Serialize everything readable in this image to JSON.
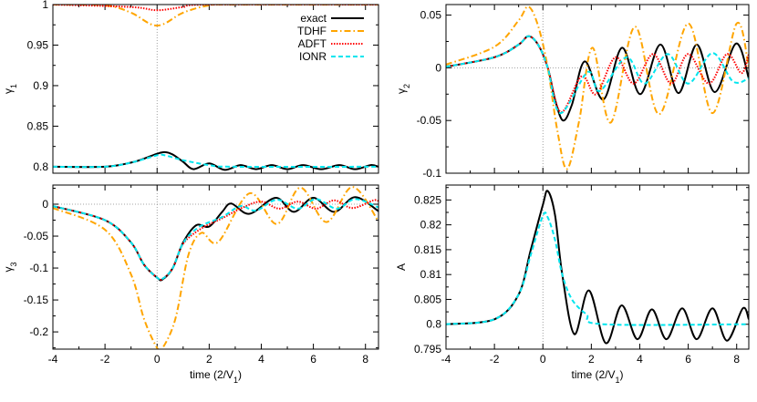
{
  "chart_data": [
    {
      "type": "line",
      "ylabel": "γ₁",
      "xlabel": "",
      "xlim": [
        -4,
        8.5
      ],
      "ylim": [
        0.792,
        1.0
      ],
      "xticks": [
        -4,
        -2,
        0,
        2,
        4,
        6,
        8
      ],
      "show_xtick_labels": false,
      "yticks": [
        0.8,
        0.85,
        0.9,
        0.95,
        1
      ],
      "ytick_labels": [
        "0.8",
        "0.85",
        "0.9",
        "0.95",
        "1"
      ],
      "zero_lines": {
        "vertical": true,
        "horizontal": false
      },
      "legend": {
        "position": "top-right",
        "entries": [
          "exact",
          "TDHF",
          "ADFT",
          "IONR"
        ]
      },
      "series": [
        {
          "name": "exact",
          "color": "#000000",
          "points": [
            [
              -4,
              0.8
            ],
            [
              -2,
              0.8
            ],
            [
              -1,
              0.805
            ],
            [
              -0.5,
              0.81
            ],
            [
              0,
              0.816
            ],
            [
              0.3,
              0.818
            ],
            [
              0.6,
              0.815
            ],
            [
              1,
              0.806
            ],
            [
              1.4,
              0.797
            ],
            [
              2,
              0.804
            ],
            [
              2.6,
              0.796
            ],
            [
              3.2,
              0.802
            ],
            [
              3.8,
              0.797
            ],
            [
              4.4,
              0.802
            ],
            [
              5,
              0.797
            ],
            [
              5.6,
              0.802
            ],
            [
              6.3,
              0.797
            ],
            [
              7,
              0.802
            ],
            [
              7.6,
              0.797
            ],
            [
              8.2,
              0.802
            ],
            [
              8.5,
              0.8
            ]
          ]
        },
        {
          "name": "TDHF",
          "color": "#ffa500",
          "points": [
            [
              -4,
              1
            ],
            [
              -2,
              0.999
            ],
            [
              -1,
              0.99
            ],
            [
              0,
              0.974
            ],
            [
              1,
              0.99
            ],
            [
              2,
              0.999
            ],
            [
              3,
              1
            ],
            [
              8.5,
              1
            ]
          ]
        },
        {
          "name": "ADFT",
          "color": "#ff0000",
          "points": [
            [
              -4,
              1
            ],
            [
              -1,
              0.997
            ],
            [
              0,
              0.993
            ],
            [
              1,
              0.997
            ],
            [
              2,
              1
            ],
            [
              8.5,
              1
            ]
          ]
        },
        {
          "name": "IONR",
          "color": "#00e5ee",
          "points": [
            [
              -4,
              0.8
            ],
            [
              -2,
              0.8
            ],
            [
              -1,
              0.805
            ],
            [
              0,
              0.814
            ],
            [
              0.3,
              0.814
            ],
            [
              1,
              0.808
            ],
            [
              2,
              0.802
            ],
            [
              3,
              0.8
            ],
            [
              8.5,
              0.8
            ]
          ]
        }
      ]
    },
    {
      "type": "line",
      "ylabel": "γ₂",
      "xlabel": "",
      "xlim": [
        -4,
        8.5
      ],
      "ylim": [
        -0.1,
        0.06
      ],
      "xticks": [
        -4,
        -2,
        0,
        2,
        4,
        6,
        8
      ],
      "show_xtick_labels": false,
      "yticks": [
        -0.1,
        -0.05,
        0,
        0.05
      ],
      "ytick_labels": [
        "-0.1",
        "-0.05",
        "0",
        "0.05"
      ],
      "zero_lines": {
        "vertical": true,
        "horizontal": true
      },
      "series": [
        {
          "name": "exact",
          "color": "#000000",
          "points": [
            [
              -4,
              0.001
            ],
            [
              -2,
              0.01
            ],
            [
              -1,
              0.022
            ],
            [
              -0.6,
              0.03
            ],
            [
              -0.2,
              0.022
            ],
            [
              0.2,
              0
            ],
            [
              0.5,
              -0.03
            ],
            [
              0.83,
              -0.05
            ],
            [
              1.2,
              -0.035
            ],
            [
              1.73,
              0.006
            ],
            [
              2.5,
              -0.03
            ],
            [
              3.27,
              0.019
            ],
            [
              4.02,
              -0.025
            ],
            [
              4.85,
              0.022
            ],
            [
              5.6,
              -0.024
            ],
            [
              6.35,
              0.022
            ],
            [
              7.1,
              -0.023
            ],
            [
              7.97,
              0.023
            ],
            [
              8.5,
              -0.01
            ]
          ]
        },
        {
          "name": "TDHF",
          "color": "#ffa500",
          "points": [
            [
              -4,
              0.003
            ],
            [
              -2,
              0.02
            ],
            [
              -1,
              0.045
            ],
            [
              -0.6,
              0.058
            ],
            [
              -0.2,
              0.04
            ],
            [
              0.2,
              0
            ],
            [
              0.6,
              -0.06
            ],
            [
              1.0,
              -0.096
            ],
            [
              1.5,
              -0.05
            ],
            [
              2.05,
              0.019
            ],
            [
              2.8,
              -0.052
            ],
            [
              3.8,
              0.039
            ],
            [
              4.8,
              -0.044
            ],
            [
              6.0,
              0.042
            ],
            [
              7.0,
              -0.043
            ],
            [
              8.0,
              0.042
            ],
            [
              8.5,
              0.0
            ]
          ]
        },
        {
          "name": "ADFT",
          "color": "#ff0000",
          "points": [
            [
              -4,
              0.001
            ],
            [
              -2,
              0.01
            ],
            [
              -1,
              0.022
            ],
            [
              -0.6,
              0.03
            ],
            [
              -0.2,
              0.022
            ],
            [
              0.2,
              0
            ],
            [
              0.75,
              -0.042
            ],
            [
              1.6,
              -0.008
            ],
            [
              2.2,
              -0.025
            ],
            [
              3.0,
              0.01
            ],
            [
              3.75,
              -0.015
            ],
            [
              4.55,
              0.013
            ],
            [
              5.3,
              -0.015
            ],
            [
              6.0,
              0.013
            ],
            [
              6.85,
              -0.015
            ],
            [
              7.6,
              0.013
            ],
            [
              8.2,
              -0.005
            ],
            [
              8.5,
              0.013
            ]
          ]
        },
        {
          "name": "IONR",
          "color": "#00e5ee",
          "points": [
            [
              -4,
              0.001
            ],
            [
              -2,
              0.01
            ],
            [
              -1,
              0.022
            ],
            [
              -0.6,
              0.03
            ],
            [
              -0.2,
              0.022
            ],
            [
              0.2,
              0
            ],
            [
              0.72,
              -0.043
            ],
            [
              1.85,
              -0.004
            ],
            [
              2.35,
              -0.022
            ],
            [
              3.45,
              0.01
            ],
            [
              4.2,
              -0.015
            ],
            [
              5.15,
              0.013
            ],
            [
              6.0,
              -0.015
            ],
            [
              7.0,
              0.014
            ],
            [
              7.85,
              -0.013
            ],
            [
              8.5,
              -0.01
            ]
          ]
        }
      ]
    },
    {
      "type": "line",
      "ylabel": "γ₃",
      "xlabel": "time (2/V₁)",
      "xlim": [
        -4,
        8.5
      ],
      "ylim": [
        -0.227,
        0.03
      ],
      "xticks": [
        -4,
        -2,
        0,
        2,
        4,
        6,
        8
      ],
      "xtick_labels": [
        "-4",
        "-2",
        "0",
        "2",
        "4",
        "6",
        "8"
      ],
      "show_xtick_labels": true,
      "yticks": [
        -0.2,
        -0.15,
        -0.1,
        -0.05,
        0
      ],
      "ytick_labels": [
        "-0.2",
        "-0.15",
        "-0.1",
        "-0.05",
        "0"
      ],
      "zero_lines": {
        "vertical": true,
        "horizontal": true
      },
      "series": [
        {
          "name": "exact",
          "color": "#000000",
          "points": [
            [
              -4,
              -0.003
            ],
            [
              -2,
              -0.025
            ],
            [
              -1,
              -0.06
            ],
            [
              -0.5,
              -0.095
            ],
            [
              0,
              -0.115
            ],
            [
              0.2,
              -0.118
            ],
            [
              0.6,
              -0.1
            ],
            [
              1,
              -0.06
            ],
            [
              1.5,
              -0.033
            ],
            [
              2,
              -0.035
            ],
            [
              2.5,
              -0.012
            ],
            [
              2.85,
              0.001
            ],
            [
              3.55,
              -0.015
            ],
            [
              4.55,
              0.01
            ],
            [
              5.25,
              -0.012
            ],
            [
              6.0,
              0.01
            ],
            [
              6.8,
              -0.012
            ],
            [
              7.6,
              0.011
            ],
            [
              8.5,
              -0.011
            ]
          ]
        },
        {
          "name": "TDHF",
          "color": "#ffa500",
          "points": [
            [
              -4,
              -0.006
            ],
            [
              -2,
              -0.04
            ],
            [
              -1,
              -0.11
            ],
            [
              -0.5,
              -0.18
            ],
            [
              0,
              -0.225
            ],
            [
              0.2,
              -0.226
            ],
            [
              0.7,
              -0.18
            ],
            [
              1.2,
              -0.08
            ],
            [
              1.7,
              -0.045
            ],
            [
              2.35,
              -0.059
            ],
            [
              3.55,
              0.017
            ],
            [
              4.6,
              -0.031
            ],
            [
              5.5,
              0.026
            ],
            [
              6.5,
              -0.028
            ],
            [
              7.5,
              0.027
            ],
            [
              8.5,
              -0.027
            ]
          ]
        },
        {
          "name": "ADFT",
          "color": "#ff0000",
          "points": [
            [
              -4,
              -0.003
            ],
            [
              -2,
              -0.025
            ],
            [
              -1,
              -0.06
            ],
            [
              -0.5,
              -0.095
            ],
            [
              0,
              -0.115
            ],
            [
              0.2,
              -0.117
            ],
            [
              0.6,
              -0.1
            ],
            [
              1,
              -0.062
            ],
            [
              1.7,
              -0.038
            ],
            [
              2.5,
              -0.022
            ],
            [
              3.3,
              -0.005
            ],
            [
              4.0,
              0.004
            ],
            [
              4.7,
              -0.007
            ],
            [
              5.4,
              0.004
            ],
            [
              6.1,
              -0.007
            ],
            [
              6.8,
              0.006
            ],
            [
              7.5,
              -0.006
            ],
            [
              8.3,
              0.006
            ],
            [
              8.5,
              0.005
            ]
          ]
        },
        {
          "name": "IONR",
          "color": "#00e5ee",
          "points": [
            [
              -4,
              -0.003
            ],
            [
              -2,
              -0.025
            ],
            [
              -1,
              -0.06
            ],
            [
              -0.5,
              -0.095
            ],
            [
              0,
              -0.115
            ],
            [
              0.2,
              -0.117
            ],
            [
              0.6,
              -0.1
            ],
            [
              1,
              -0.061
            ],
            [
              1.6,
              -0.036
            ],
            [
              2.5,
              -0.02
            ],
            [
              3.2,
              -0.003
            ],
            [
              3.8,
              -0.01
            ],
            [
              4.6,
              0.007
            ],
            [
              5.4,
              -0.007
            ],
            [
              6.1,
              0.008
            ],
            [
              6.9,
              -0.007
            ],
            [
              7.6,
              0.008
            ],
            [
              8.5,
              -0.005
            ]
          ]
        }
      ]
    },
    {
      "type": "line",
      "ylabel": "A",
      "xlabel": "time (2/V₁)",
      "xlim": [
        -4,
        8.5
      ],
      "ylim": [
        0.795,
        0.828
      ],
      "xticks": [
        -4,
        -2,
        0,
        2,
        4,
        6,
        8
      ],
      "xtick_labels": [
        "-4",
        "-2",
        "0",
        "2",
        "4",
        "6",
        "8"
      ],
      "show_xtick_labels": true,
      "yticks": [
        0.795,
        0.8,
        0.805,
        0.81,
        0.815,
        0.82,
        0.825
      ],
      "ytick_labels": [
        "0.795",
        "0.8",
        "0.805",
        "0.81",
        "0.815",
        "0.82",
        "0.825"
      ],
      "zero_lines": {
        "vertical": true,
        "horizontal": false
      },
      "series": [
        {
          "name": "exact",
          "color": "#000000",
          "points": [
            [
              -4,
              0.8
            ],
            [
              -2,
              0.801
            ],
            [
              -1,
              0.806
            ],
            [
              -0.5,
              0.815
            ],
            [
              0,
              0.824
            ],
            [
              0.2,
              0.8268
            ],
            [
              0.5,
              0.822
            ],
            [
              0.8,
              0.81
            ],
            [
              1.3,
              0.798
            ],
            [
              1.9,
              0.8068
            ],
            [
              2.6,
              0.7962
            ],
            [
              3.25,
              0.8038
            ],
            [
              3.9,
              0.797
            ],
            [
              4.5,
              0.803
            ],
            [
              5.1,
              0.797
            ],
            [
              5.75,
              0.8032
            ],
            [
              6.35,
              0.797
            ],
            [
              7.0,
              0.8032
            ],
            [
              7.6,
              0.7967
            ],
            [
              8.25,
              0.8032
            ],
            [
              8.5,
              0.801
            ]
          ]
        },
        {
          "name": "IONR",
          "color": "#00e5ee",
          "points": [
            [
              -4,
              0.8
            ],
            [
              -2,
              0.801
            ],
            [
              -1,
              0.806
            ],
            [
              -0.5,
              0.814
            ],
            [
              0,
              0.8218
            ],
            [
              0.2,
              0.8215
            ],
            [
              0.5,
              0.817
            ],
            [
              0.8,
              0.81
            ],
            [
              1.2,
              0.805
            ],
            [
              1.8,
              0.802
            ],
            [
              2.5,
              0.8
            ],
            [
              8.5,
              0.8
            ]
          ]
        }
      ]
    }
  ]
}
